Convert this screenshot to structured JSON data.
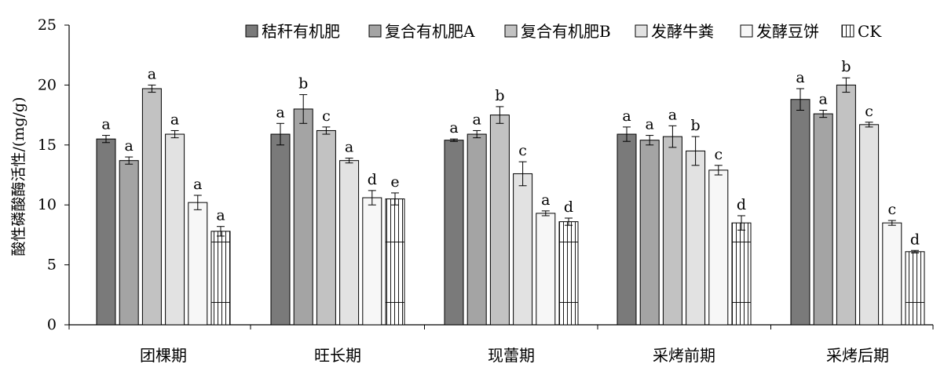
{
  "chart_data": {
    "type": "bar",
    "title": "",
    "xlabel": "",
    "ylabel": "酸性磷酸酶活性/(mg/g)",
    "ylim": [
      0,
      25
    ],
    "yticks": [
      0,
      5,
      10,
      15,
      20,
      25
    ],
    "grid": false,
    "legend_position": "top-right",
    "categories": [
      "团棵期",
      "旺长期",
      "现蕾期",
      "采烤前期",
      "采烤后期"
    ],
    "series": [
      {
        "name": "秸秆有机肥",
        "color": "#7a7a7a",
        "pattern": "solid",
        "values": [
          15.5,
          15.9,
          15.4,
          15.9,
          18.8
        ],
        "errors": [
          0.3,
          0.9,
          0.1,
          0.6,
          0.9
        ],
        "labels": [
          "a",
          "a",
          "a",
          "a",
          "a"
        ]
      },
      {
        "name": "复合有机肥A",
        "color": "#a4a4a4",
        "pattern": "solid",
        "values": [
          13.7,
          18.0,
          15.9,
          15.4,
          17.6
        ],
        "errors": [
          0.3,
          1.2,
          0.3,
          0.4,
          0.3
        ],
        "labels": [
          "a",
          "b",
          "a",
          "a",
          "a"
        ]
      },
      {
        "name": "复合有机肥B",
        "color": "#c2c2c2",
        "pattern": "solid",
        "values": [
          19.7,
          16.2,
          17.5,
          15.7,
          20.0
        ],
        "errors": [
          0.3,
          0.3,
          0.7,
          0.9,
          0.6
        ],
        "labels": [
          "a",
          "c",
          "b",
          "a",
          "b"
        ]
      },
      {
        "name": "发酵牛粪",
        "color": "#e2e2e2",
        "pattern": "solid",
        "values": [
          15.9,
          13.7,
          12.6,
          14.5,
          16.7
        ],
        "errors": [
          0.3,
          0.2,
          1.0,
          1.2,
          0.2
        ],
        "labels": [
          "a",
          "a",
          "c",
          "b",
          "c"
        ]
      },
      {
        "name": "发酵豆饼",
        "color": "#f7f7f7",
        "pattern": "solid",
        "values": [
          10.2,
          10.6,
          9.3,
          12.9,
          8.5
        ],
        "errors": [
          0.6,
          0.6,
          0.2,
          0.4,
          0.2
        ],
        "labels": [
          "a",
          "d",
          "a",
          "c",
          "c"
        ]
      },
      {
        "name": "CK",
        "color": "#ffffff",
        "pattern": "grid",
        "values": [
          7.8,
          10.5,
          8.6,
          8.5,
          6.1
        ],
        "errors": [
          0.4,
          0.5,
          0.3,
          0.6,
          0.1
        ],
        "labels": [
          "a",
          "e",
          "d",
          "d",
          "d"
        ]
      }
    ]
  }
}
